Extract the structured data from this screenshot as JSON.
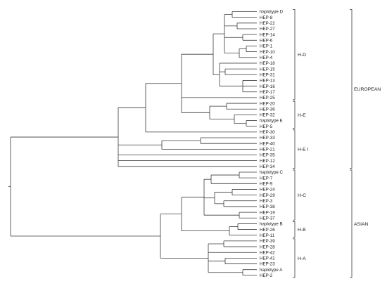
{
  "tree": {
    "leaves": [
      "haplotype D",
      "HEP-8",
      "HEP-22",
      "HEP-27",
      "HEP-14",
      "HEP-6",
      "HEP-1",
      "HEP-10",
      "HEP-4",
      "HEP-18",
      "HEP-15",
      "HEP-31",
      "HEP-13",
      "HEP-16",
      "HEP-17",
      "HEP-25",
      "HEP-20",
      "HEP-36",
      "HEP-32",
      "haplotype E",
      "HEP-5",
      "HEP-30",
      "HEP-33",
      "HEP-40",
      "HEP-21",
      "HEP-35",
      "HEP-12",
      "HEP-34",
      "haplotype C",
      "HEP-7",
      "HEP-9",
      "HEP-24",
      "HEP-29",
      "HEP-3",
      "HEP-38",
      "HEP-19",
      "HEP-37",
      "haplotype B",
      "HEP-26",
      "HEP-11",
      "HEP-39",
      "HEP-28",
      "HEP-42",
      "HEP-41",
      "HEP-23",
      "haplotype A",
      "HEP-2"
    ]
  },
  "groups": [
    {
      "label": "H-D",
      "first": 0,
      "last": 15
    },
    {
      "label": "H-E",
      "first": 16,
      "last": 20
    },
    {
      "label": "H-E I",
      "first": 21,
      "last": 27
    },
    {
      "label": "H-C",
      "first": 28,
      "last": 36
    },
    {
      "label": "H-B",
      "first": 37,
      "last": 39
    },
    {
      "label": "H-A",
      "first": 40,
      "last": 46
    }
  ],
  "regions": [
    {
      "label": "EUROPEAN",
      "first": 0,
      "last": 27
    },
    {
      "label": "ASIAN",
      "first": 28,
      "last": 46
    }
  ]
}
